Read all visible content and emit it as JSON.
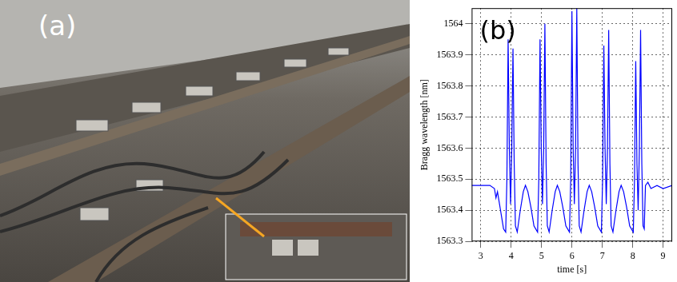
{
  "photo": {
    "label": "(a)"
  },
  "chart_data": {
    "type": "line",
    "annotations": [
      "(b)"
    ],
    "x_label": "time [s]",
    "y_label": "Bragg wavelength [nm]",
    "color": "#0000ff",
    "x": [
      2.7,
      3.0,
      3.3,
      3.45,
      3.5,
      3.55,
      3.6,
      3.65,
      3.7,
      3.75,
      3.82,
      3.86,
      3.9,
      3.94,
      3.98,
      4.02,
      4.06,
      4.1,
      4.14,
      4.2,
      4.3,
      4.4,
      4.47,
      4.55,
      4.65,
      4.75,
      4.87,
      4.91,
      4.95,
      4.99,
      5.03,
      5.07,
      5.11,
      5.15,
      5.19,
      5.25,
      5.35,
      5.45,
      5.52,
      5.6,
      5.7,
      5.8,
      5.92,
      5.96,
      6.0,
      6.04,
      6.08,
      6.12,
      6.16,
      6.2,
      6.24,
      6.3,
      6.4,
      6.5,
      6.57,
      6.65,
      6.75,
      6.85,
      6.97,
      7.01,
      7.05,
      7.09,
      7.13,
      7.17,
      7.21,
      7.25,
      7.29,
      7.35,
      7.45,
      7.55,
      7.62,
      7.7,
      7.8,
      7.9,
      8.02,
      8.06,
      8.1,
      8.14,
      8.18,
      8.22,
      8.26,
      8.3,
      8.34,
      8.38,
      8.42,
      8.5,
      8.6,
      8.8,
      9.0,
      9.3
    ],
    "values": [
      1563.48,
      1563.48,
      1563.48,
      1563.47,
      1563.44,
      1563.46,
      1563.43,
      1563.4,
      1563.37,
      1563.34,
      1563.33,
      1563.5,
      1563.95,
      1563.6,
      1563.42,
      1563.6,
      1563.92,
      1563.55,
      1563.35,
      1563.33,
      1563.4,
      1563.46,
      1563.48,
      1563.46,
      1563.41,
      1563.35,
      1563.33,
      1563.5,
      1563.95,
      1563.6,
      1563.42,
      1563.6,
      1564.0,
      1563.55,
      1563.35,
      1563.33,
      1563.4,
      1563.46,
      1563.48,
      1563.46,
      1563.41,
      1563.35,
      1563.33,
      1563.5,
      1564.04,
      1563.6,
      1563.42,
      1563.6,
      1564.05,
      1563.55,
      1563.35,
      1563.33,
      1563.4,
      1563.46,
      1563.48,
      1563.46,
      1563.41,
      1563.35,
      1563.33,
      1563.5,
      1563.93,
      1563.6,
      1563.42,
      1563.6,
      1563.98,
      1563.55,
      1563.35,
      1563.33,
      1563.4,
      1563.46,
      1563.48,
      1563.46,
      1563.41,
      1563.35,
      1563.33,
      1563.5,
      1563.88,
      1563.55,
      1563.4,
      1563.6,
      1563.98,
      1563.55,
      1563.35,
      1563.34,
      1563.48,
      1563.49,
      1563.47,
      1563.48,
      1563.47,
      1563.48
    ],
    "xlim": [
      2.7,
      9.3
    ],
    "ylim": [
      1563.3,
      1564.05
    ],
    "xticks": [
      3,
      4,
      5,
      6,
      7,
      8,
      9
    ],
    "yticks": [
      1563.3,
      1563.4,
      1563.5,
      1563.6,
      1563.7,
      1563.8,
      1563.9,
      1564
    ],
    "grid": true
  }
}
